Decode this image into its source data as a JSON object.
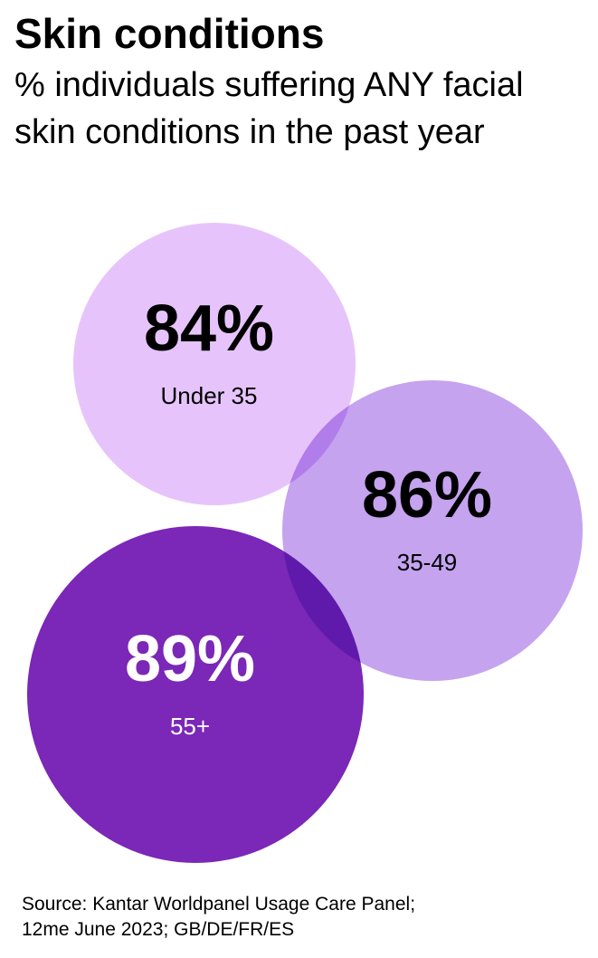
{
  "chart_data": {
    "type": "bubble",
    "title": "Skin conditions",
    "subtitle": "% individuals suffering ANY facial skin conditions in the past year",
    "categories": [
      "Under 35",
      "35-49",
      "55+"
    ],
    "values": [
      84,
      86,
      89
    ],
    "value_labels": [
      "84%",
      "86%",
      "89%"
    ],
    "colors": [
      "#e6c4fb",
      "#c5a3ef",
      "#7b27b7"
    ],
    "source": "Source: Kantar Worldpanel Usage Care Panel; 12me June 2023; GB/DE/FR/ES"
  }
}
